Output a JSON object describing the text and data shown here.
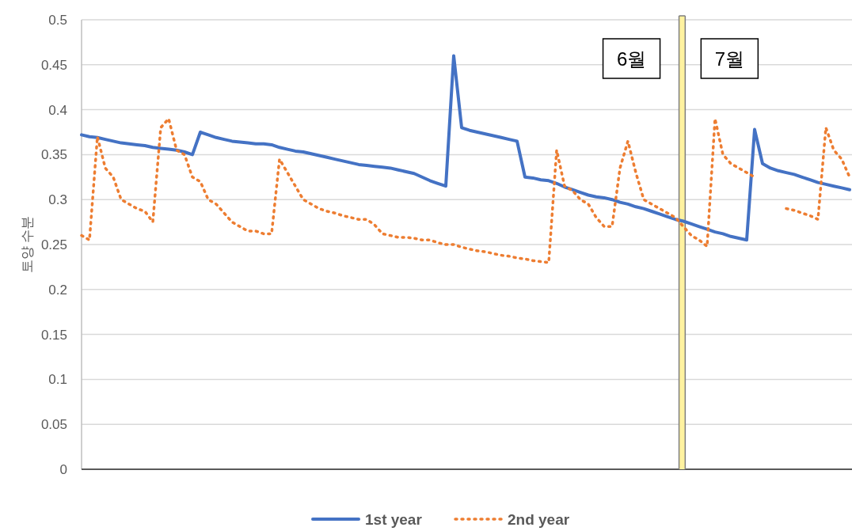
{
  "chart_data": {
    "type": "line",
    "ylabel": "토양 수분",
    "categories": [
      null,
      null,
      null,
      null,
      null,
      null,
      null,
      null,
      null,
      null,
      null,
      null,
      null,
      null,
      null,
      null,
      null,
      null,
      null,
      null,
      null,
      null,
      null,
      null,
      null,
      null,
      null,
      null,
      null,
      null,
      null,
      null,
      null,
      null,
      null,
      null,
      null,
      null,
      null,
      null,
      null,
      null,
      null,
      null,
      null,
      null,
      null,
      null,
      null,
      null,
      null,
      null,
      null,
      null,
      null,
      null,
      null,
      null,
      null,
      null,
      null,
      null,
      null,
      null,
      null,
      null,
      null,
      null,
      null,
      null,
      null,
      null,
      null,
      null,
      null,
      null,
      null,
      null,
      null,
      null,
      null,
      null,
      null,
      null,
      null,
      null,
      null,
      null,
      null,
      null,
      null,
      null,
      null,
      null,
      null,
      null,
      null,
      null
    ],
    "series": [
      {
        "name": "1st year",
        "color": "#4472c4",
        "line_style": "solid",
        "values": [
          0.372,
          0.37,
          0.369,
          0.367,
          0.365,
          0.363,
          0.362,
          0.361,
          0.36,
          0.358,
          0.357,
          0.356,
          0.355,
          0.353,
          0.35,
          0.375,
          0.372,
          0.369,
          0.367,
          0.365,
          0.364,
          0.363,
          0.362,
          0.362,
          0.361,
          0.358,
          0.356,
          0.354,
          0.353,
          0.351,
          0.349,
          0.347,
          0.345,
          0.343,
          0.341,
          0.339,
          0.338,
          0.337,
          0.336,
          0.335,
          0.333,
          0.331,
          0.329,
          0.325,
          0.321,
          0.318,
          0.315,
          0.46,
          0.38,
          0.377,
          0.375,
          0.373,
          0.371,
          0.369,
          0.367,
          0.365,
          0.325,
          0.324,
          0.322,
          0.321,
          0.318,
          0.314,
          0.311,
          0.308,
          0.305,
          0.303,
          0.302,
          0.3,
          0.297,
          0.295,
          0.292,
          0.29,
          0.287,
          0.284,
          0.281,
          0.278,
          0.276,
          0.273,
          0.27,
          0.267,
          0.264,
          0.262,
          0.259,
          0.257,
          0.255,
          0.378,
          0.34,
          0.335,
          0.332,
          0.33,
          0.328,
          0.325,
          0.322,
          0.319,
          0.317,
          0.315,
          0.313,
          0.311
        ]
      },
      {
        "name": "2nd year",
        "color": "#ed7d31",
        "line_style": "dotted",
        "values": [
          0.26,
          0.255,
          0.37,
          0.335,
          0.325,
          0.3,
          0.295,
          0.29,
          0.287,
          0.275,
          0.38,
          0.39,
          0.355,
          0.35,
          0.325,
          0.32,
          0.3,
          0.295,
          0.285,
          0.275,
          0.27,
          0.265,
          0.265,
          0.262,
          0.262,
          0.345,
          0.33,
          0.315,
          0.3,
          0.295,
          0.29,
          0.287,
          0.285,
          0.282,
          0.28,
          0.278,
          0.278,
          0.272,
          0.262,
          0.26,
          0.258,
          0.258,
          0.257,
          0.255,
          0.255,
          0.252,
          0.25,
          0.25,
          0.247,
          0.245,
          0.243,
          0.242,
          0.24,
          0.238,
          0.237,
          0.235,
          0.234,
          0.232,
          0.231,
          0.23,
          0.355,
          0.315,
          0.31,
          0.3,
          0.295,
          0.28,
          0.27,
          0.27,
          0.335,
          0.365,
          0.33,
          0.3,
          0.295,
          0.29,
          0.285,
          0.28,
          0.27,
          0.26,
          0.255,
          0.248,
          0.39,
          0.35,
          0.34,
          0.335,
          0.33,
          0.325,
          null,
          null,
          null,
          0.29,
          0.288,
          0.285,
          0.282,
          0.278,
          0.38,
          0.355,
          0.345,
          0.325
        ]
      }
    ],
    "ylim": [
      0,
      0.5
    ],
    "yticks": [
      0,
      0.05,
      0.1,
      0.15,
      0.2,
      0.25,
      0.3,
      0.35,
      0.4,
      0.45,
      0.5
    ],
    "annotations": [
      "6월",
      "7월"
    ],
    "grid": "y",
    "legend": "bottom",
    "tick_labels": "y"
  }
}
